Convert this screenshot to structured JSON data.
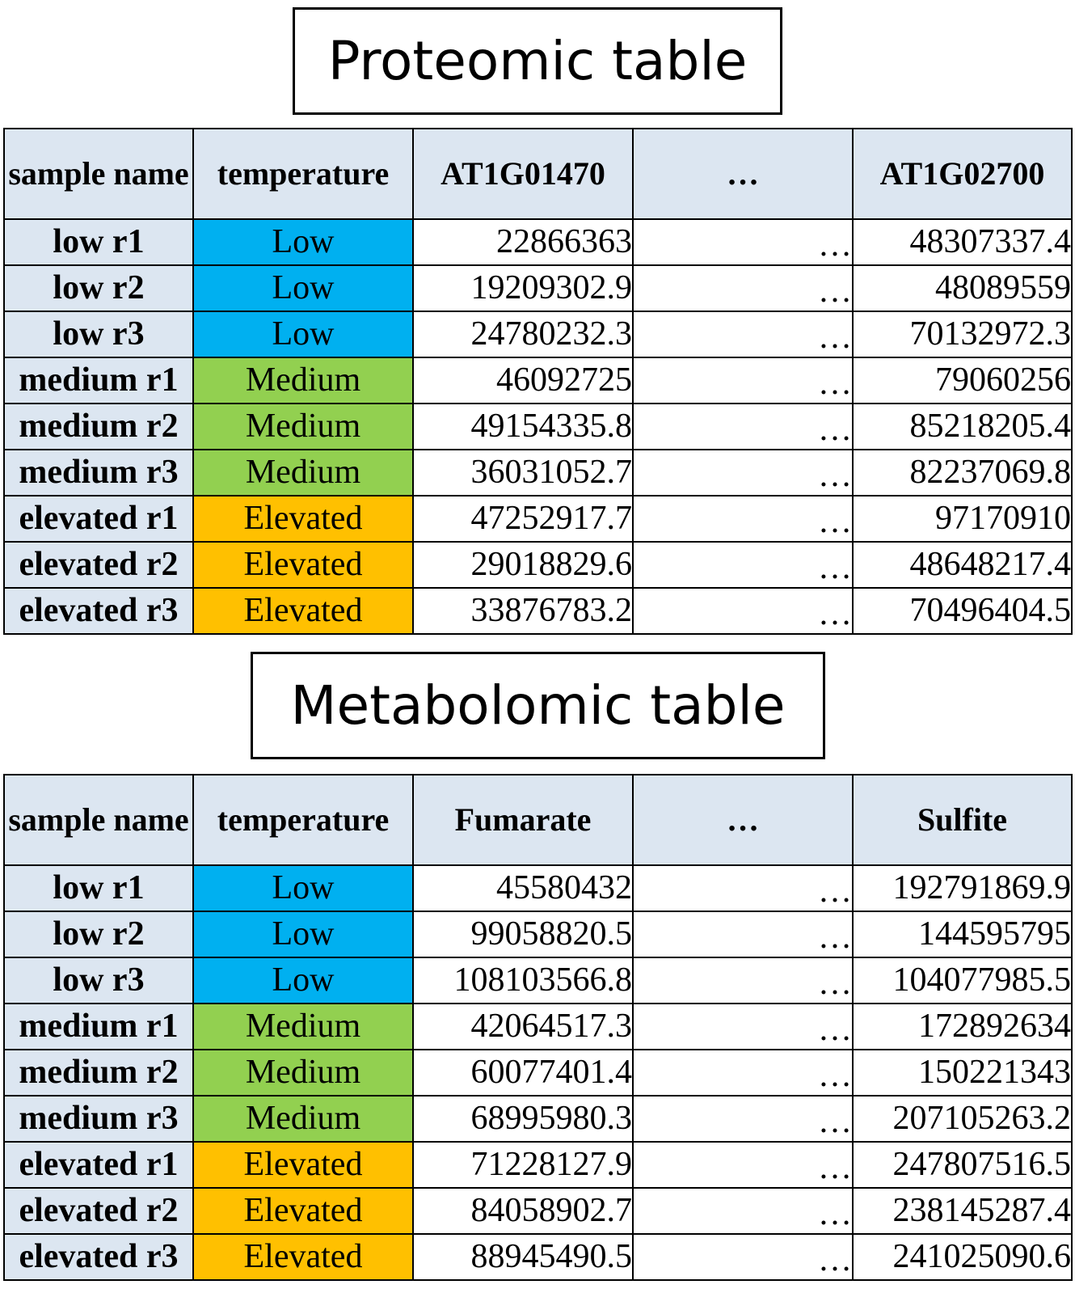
{
  "colors": {
    "header_bg": "#dce6f1",
    "Low": "#00b0f0",
    "Medium": "#92d050",
    "Elevated": "#ffc000"
  },
  "proteomic": {
    "title": "Proteomic table",
    "headers": [
      "sample name",
      "temperature",
      "AT1G01470",
      "…",
      "AT1G02700"
    ],
    "rows": [
      {
        "sample": "low r1",
        "temperature": "Low",
        "first": "22866363",
        "ellipsis": "…",
        "last": "48307337.4"
      },
      {
        "sample": "low r2",
        "temperature": "Low",
        "first": "19209302.9",
        "ellipsis": "…",
        "last": "48089559"
      },
      {
        "sample": "low r3",
        "temperature": "Low",
        "first": "24780232.3",
        "ellipsis": "…",
        "last": "70132972.3"
      },
      {
        "sample": "medium r1",
        "temperature": "Medium",
        "first": "46092725",
        "ellipsis": "…",
        "last": "79060256"
      },
      {
        "sample": "medium r2",
        "temperature": "Medium",
        "first": "49154335.8",
        "ellipsis": "…",
        "last": "85218205.4"
      },
      {
        "sample": "medium r3",
        "temperature": "Medium",
        "first": "36031052.7",
        "ellipsis": "…",
        "last": "82237069.8"
      },
      {
        "sample": "elevated r1",
        "temperature": "Elevated",
        "first": "47252917.7",
        "ellipsis": "…",
        "last": "97170910"
      },
      {
        "sample": "elevated r2",
        "temperature": "Elevated",
        "first": "29018829.6",
        "ellipsis": "…",
        "last": "48648217.4"
      },
      {
        "sample": "elevated r3",
        "temperature": "Elevated",
        "first": "33876783.2",
        "ellipsis": "…",
        "last": "70496404.5"
      }
    ]
  },
  "metabolomic": {
    "title": "Metabolomic table",
    "headers": [
      "sample name",
      "temperature",
      "Fumarate",
      "…",
      "Sulfite"
    ],
    "rows": [
      {
        "sample": "low r1",
        "temperature": "Low",
        "first": "45580432",
        "ellipsis": "…",
        "last": "192791869.9"
      },
      {
        "sample": "low r2",
        "temperature": "Low",
        "first": "99058820.5",
        "ellipsis": "…",
        "last": "144595795"
      },
      {
        "sample": "low r3",
        "temperature": "Low",
        "first": "108103566.8",
        "ellipsis": "…",
        "last": "104077985.5"
      },
      {
        "sample": "medium r1",
        "temperature": "Medium",
        "first": "42064517.3",
        "ellipsis": "…",
        "last": "172892634"
      },
      {
        "sample": "medium r2",
        "temperature": "Medium",
        "first": "60077401.4",
        "ellipsis": "…",
        "last": "150221343"
      },
      {
        "sample": "medium r3",
        "temperature": "Medium",
        "first": "68995980.3",
        "ellipsis": "…",
        "last": "207105263.2"
      },
      {
        "sample": "elevated r1",
        "temperature": "Elevated",
        "first": "71228127.9",
        "ellipsis": "…",
        "last": "247807516.5"
      },
      {
        "sample": "elevated r2",
        "temperature": "Elevated",
        "first": "84058902.7",
        "ellipsis": "…",
        "last": "238145287.4"
      },
      {
        "sample": "elevated r3",
        "temperature": "Elevated",
        "first": "88945490.5",
        "ellipsis": "…",
        "last": "241025090.6"
      }
    ]
  }
}
